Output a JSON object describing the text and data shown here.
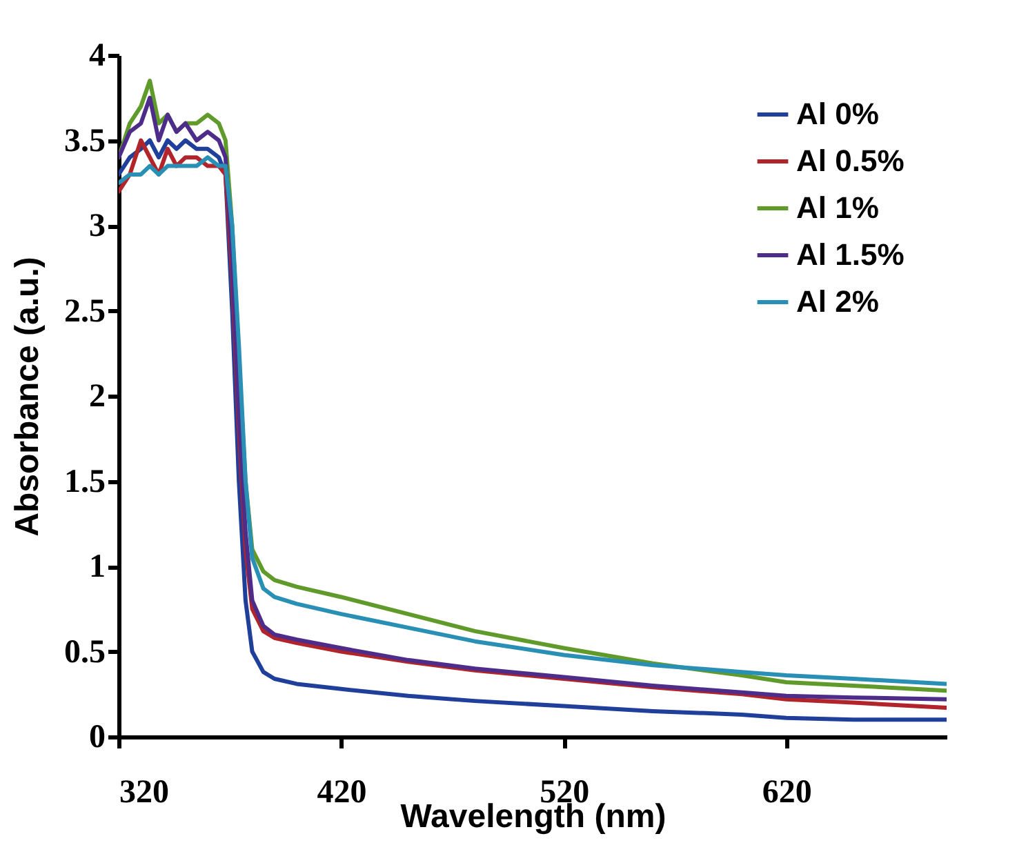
{
  "chart_data": {
    "type": "line",
    "xlabel": "Wavelength (nm)",
    "ylabel": "Absorbance (a.u.)",
    "x": [
      320,
      325,
      330,
      334,
      338,
      342,
      346,
      350,
      355,
      360,
      365,
      368,
      371,
      374,
      377,
      380,
      385,
      390,
      400,
      420,
      450,
      480,
      520,
      560,
      600,
      620,
      650,
      692
    ],
    "series": [
      {
        "name": "Al 0%",
        "color": "#1f3f9a",
        "values": [
          3.3,
          3.4,
          3.45,
          3.5,
          3.4,
          3.5,
          3.45,
          3.5,
          3.45,
          3.45,
          3.4,
          3.3,
          2.5,
          1.5,
          0.8,
          0.5,
          0.38,
          0.34,
          0.31,
          0.28,
          0.24,
          0.21,
          0.18,
          0.15,
          0.13,
          0.11,
          0.1,
          0.1
        ]
      },
      {
        "name": "Al 0.5%",
        "color": "#b0242a",
        "values": [
          3.2,
          3.3,
          3.5,
          3.4,
          3.3,
          3.45,
          3.35,
          3.4,
          3.4,
          3.35,
          3.35,
          3.3,
          2.7,
          1.8,
          1.1,
          0.75,
          0.62,
          0.58,
          0.55,
          0.5,
          0.44,
          0.39,
          0.34,
          0.29,
          0.25,
          0.22,
          0.2,
          0.17
        ]
      },
      {
        "name": "Al 1%",
        "color": "#5f9a2a",
        "values": [
          3.4,
          3.6,
          3.7,
          3.85,
          3.6,
          3.65,
          3.55,
          3.6,
          3.6,
          3.65,
          3.6,
          3.5,
          3.0,
          2.2,
          1.5,
          1.1,
          0.97,
          0.92,
          0.88,
          0.82,
          0.72,
          0.62,
          0.52,
          0.43,
          0.36,
          0.32,
          0.3,
          0.27
        ]
      },
      {
        "name": "Al 1.5%",
        "color": "#4e2d8a",
        "values": [
          3.4,
          3.55,
          3.6,
          3.75,
          3.5,
          3.65,
          3.55,
          3.6,
          3.5,
          3.55,
          3.5,
          3.4,
          2.8,
          1.9,
          1.2,
          0.8,
          0.65,
          0.6,
          0.57,
          0.52,
          0.45,
          0.4,
          0.35,
          0.3,
          0.26,
          0.24,
          0.23,
          0.22
        ]
      },
      {
        "name": "Al 2%",
        "color": "#2a8fb5",
        "values": [
          3.25,
          3.3,
          3.3,
          3.35,
          3.3,
          3.35,
          3.35,
          3.35,
          3.35,
          3.4,
          3.35,
          3.35,
          3.0,
          2.3,
          1.5,
          1.05,
          0.87,
          0.82,
          0.78,
          0.72,
          0.64,
          0.56,
          0.48,
          0.42,
          0.38,
          0.36,
          0.34,
          0.31
        ]
      }
    ],
    "xlim": [
      320,
      692
    ],
    "xticks": [
      320,
      420,
      520,
      620
    ],
    "ylim": [
      0,
      4
    ],
    "yticks": [
      0,
      0.5,
      1,
      1.5,
      2,
      2.5,
      3,
      3.5,
      4
    ],
    "grid": false,
    "legend": "top right",
    "line_style": "solid",
    "marker": "none"
  }
}
